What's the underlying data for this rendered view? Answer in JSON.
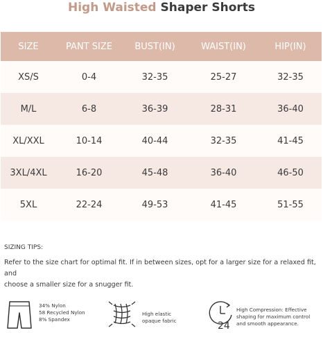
{
  "title": {
    "part1": "High Waisted",
    "part2": "Shaper Shorts"
  },
  "table": {
    "headers": [
      "SIZE",
      "PANT SIZE",
      "BUST(IN)",
      "WAIST(IN)",
      "HIP(IN)"
    ],
    "rows": [
      [
        "XS/S",
        "0-4",
        "32-35",
        "25-27",
        "32-35"
      ],
      [
        "M/L",
        "6-8",
        "36-39",
        "28-31",
        "36-40"
      ],
      [
        "XL/XXL",
        "10-14",
        "40-44",
        "32-35",
        "41-45"
      ],
      [
        "3XL/4XL",
        "16-20",
        "45-48",
        "36-40",
        "46-50"
      ],
      [
        "5XL",
        "22-24",
        "49-53",
        "41-45",
        "51-55"
      ]
    ]
  },
  "tips": {
    "title": "SIZING TIPS:",
    "line1": "Refer to the size chart for optimal fit. If in between sizes, opt for a  larger size for a relaxed fit, and",
    "line2": "choose a smaller size for a snugger fit."
  },
  "features": {
    "material": {
      "icon": "shorts-icon",
      "lines": [
        "34% Nylon",
        "58 Recycled Nylon",
        "8% Spandex"
      ]
    },
    "fabric": {
      "icon": "elastic-mesh-icon",
      "lines": [
        "High elastic",
        "opaque fabric"
      ]
    },
    "compression": {
      "icon": "24-hour-clock-icon",
      "clock_label": "24",
      "lines": [
        "High Compression: Effective",
        "shaping for maximum control",
        "and smooth appearance."
      ]
    }
  },
  "colors": {
    "accent": "#dcb9a8",
    "title_accent": "#c39a88",
    "row_light": "#fffbf9",
    "row_dark": "#f6e9e3",
    "text": "#3a3a3a"
  }
}
